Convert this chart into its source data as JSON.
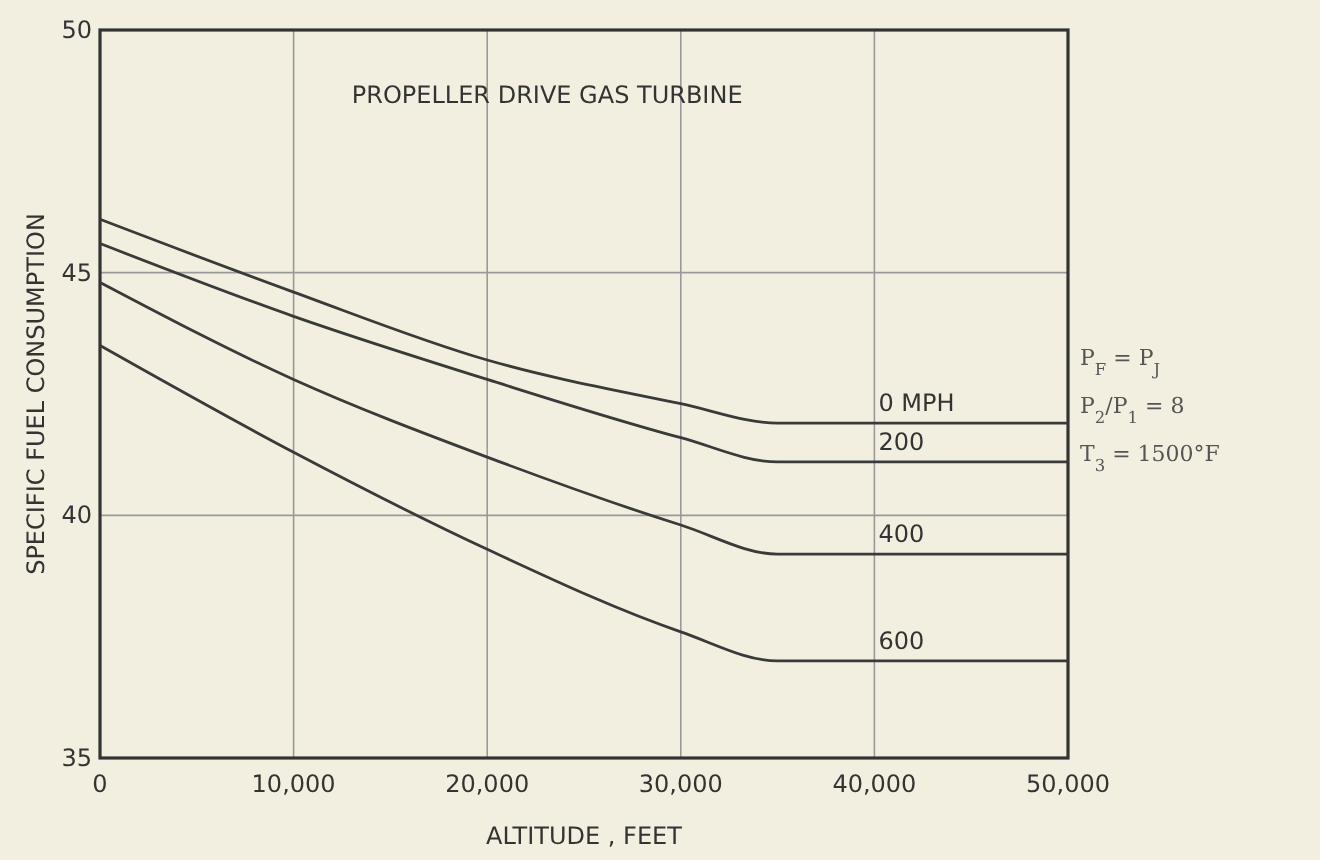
{
  "chart_data": {
    "type": "line",
    "title": "PROPELLER DRIVE GAS TURBINE",
    "xlabel": "ALTITUDE , FEET",
    "ylabel": "SPECIFIC  FUEL  CONSUMPTION",
    "x": [
      0,
      10000,
      20000,
      30000,
      35000,
      50000
    ],
    "series": [
      {
        "name": "0 MPH",
        "color": "#3a3a3a",
        "values": [
          46.1,
          44.6,
          43.2,
          42.3,
          41.9,
          41.9
        ]
      },
      {
        "name": "200",
        "color": "#3a3a3a",
        "values": [
          45.6,
          44.1,
          42.8,
          41.6,
          41.1,
          41.1
        ]
      },
      {
        "name": "400",
        "color": "#3a3a3a",
        "values": [
          44.8,
          42.8,
          41.2,
          39.8,
          39.2,
          39.2
        ]
      },
      {
        "name": "600",
        "color": "#3a3a3a",
        "values": [
          43.5,
          41.3,
          39.3,
          37.6,
          37.0,
          37.0
        ]
      }
    ],
    "xlim": [
      0,
      50000
    ],
    "ylim": [
      35,
      50
    ],
    "xticks": [
      0,
      {
        "value": 10000,
        "label": "10,000"
      },
      {
        "value": 20000,
        "label": "20,000"
      },
      {
        "value": 30000,
        "label": "30,000"
      },
      {
        "value": 40000,
        "label": "40,000"
      },
      {
        "value": 50000,
        "label": "50,000"
      }
    ],
    "yticks": [
      35,
      40,
      45,
      50
    ],
    "grid": true,
    "marker": "none",
    "line_style": "solid",
    "annotations": [
      "P$_{F}$ = P$_{J}$",
      "P$_{2}$/P$_{1}$ = 8",
      "T$_{3}$ = 1500°F"
    ]
  }
}
